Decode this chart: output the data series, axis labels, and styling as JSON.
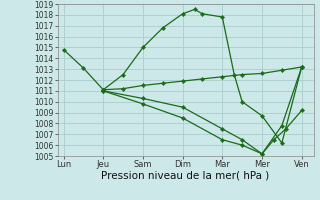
{
  "background_color": "#cce8e8",
  "grid_color": "#aacccc",
  "line_color": "#1a6b1a",
  "ylim": [
    1005,
    1019
  ],
  "yticks": [
    1005,
    1006,
    1007,
    1008,
    1009,
    1010,
    1011,
    1012,
    1013,
    1014,
    1015,
    1016,
    1017,
    1018,
    1019
  ],
  "xlabel": "Pression niveau de la mer( hPa )",
  "xlabel_fontsize": 7.5,
  "xtick_labels": [
    "Lun",
    "Jeu",
    "Sam",
    "Dim",
    "Mar",
    "Mer",
    "Ven"
  ],
  "xtick_positions": [
    0,
    1,
    2,
    3,
    4,
    5,
    6
  ],
  "xlim": [
    -0.15,
    6.3
  ],
  "series": [
    {
      "x": [
        0,
        0.5,
        1,
        1.5,
        2,
        2.5,
        3,
        3.3,
        3.5,
        4,
        4.3,
        4.5,
        5,
        5.5,
        6
      ],
      "y": [
        1014.8,
        1013.1,
        1011.1,
        1012.5,
        1015.0,
        1016.8,
        1018.1,
        1018.5,
        1018.1,
        1017.8,
        1012.5,
        1010.0,
        1008.7,
        1006.2,
        1013.2
      ]
    },
    {
      "x": [
        1,
        1.5,
        2,
        2.5,
        3,
        3.5,
        4,
        4.5,
        5,
        5.5,
        6
      ],
      "y": [
        1011.1,
        1011.2,
        1011.5,
        1011.7,
        1011.9,
        1012.1,
        1012.3,
        1012.5,
        1012.6,
        1012.9,
        1013.2
      ]
    },
    {
      "x": [
        1,
        2,
        3,
        4,
        4.5,
        5,
        5.3,
        5.6,
        6
      ],
      "y": [
        1011.0,
        1010.3,
        1009.5,
        1007.5,
        1006.5,
        1005.2,
        1006.5,
        1007.5,
        1009.2
      ]
    },
    {
      "x": [
        1,
        2,
        3,
        4,
        4.5,
        5,
        5.5,
        6
      ],
      "y": [
        1011.0,
        1009.8,
        1008.5,
        1006.5,
        1006.0,
        1005.2,
        1007.8,
        1013.2
      ]
    }
  ]
}
